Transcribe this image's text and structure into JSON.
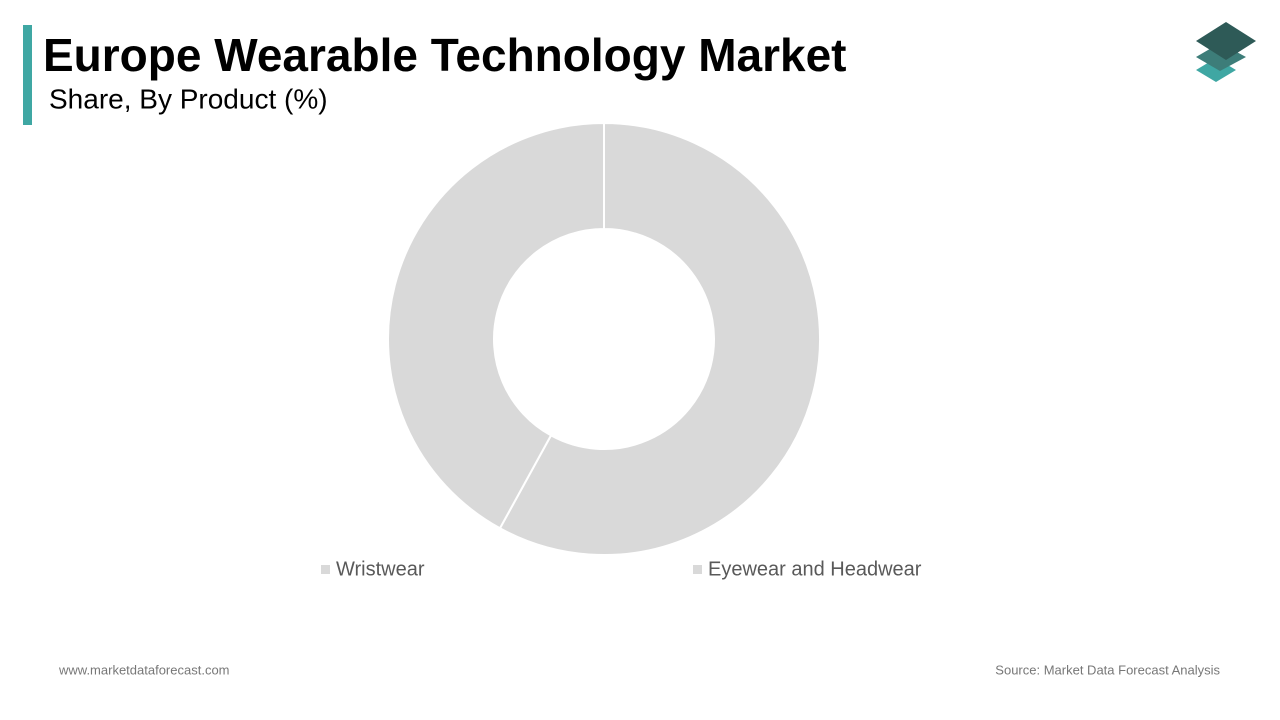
{
  "chart_data": {
    "type": "pie",
    "title": "Europe Wearable Technology Market",
    "subtitle": "Share, By  Product (%)",
    "categories": [
      "Wristwear",
      "Eyewear and Headwear"
    ],
    "values": [
      58,
      42
    ],
    "colors": [
      "#d9d9d9",
      "#d9d9d9"
    ],
    "donut": true,
    "footer_left": "www.marketdataforecast.com",
    "footer_right": "Source: Market Data Forecast Analysis"
  }
}
